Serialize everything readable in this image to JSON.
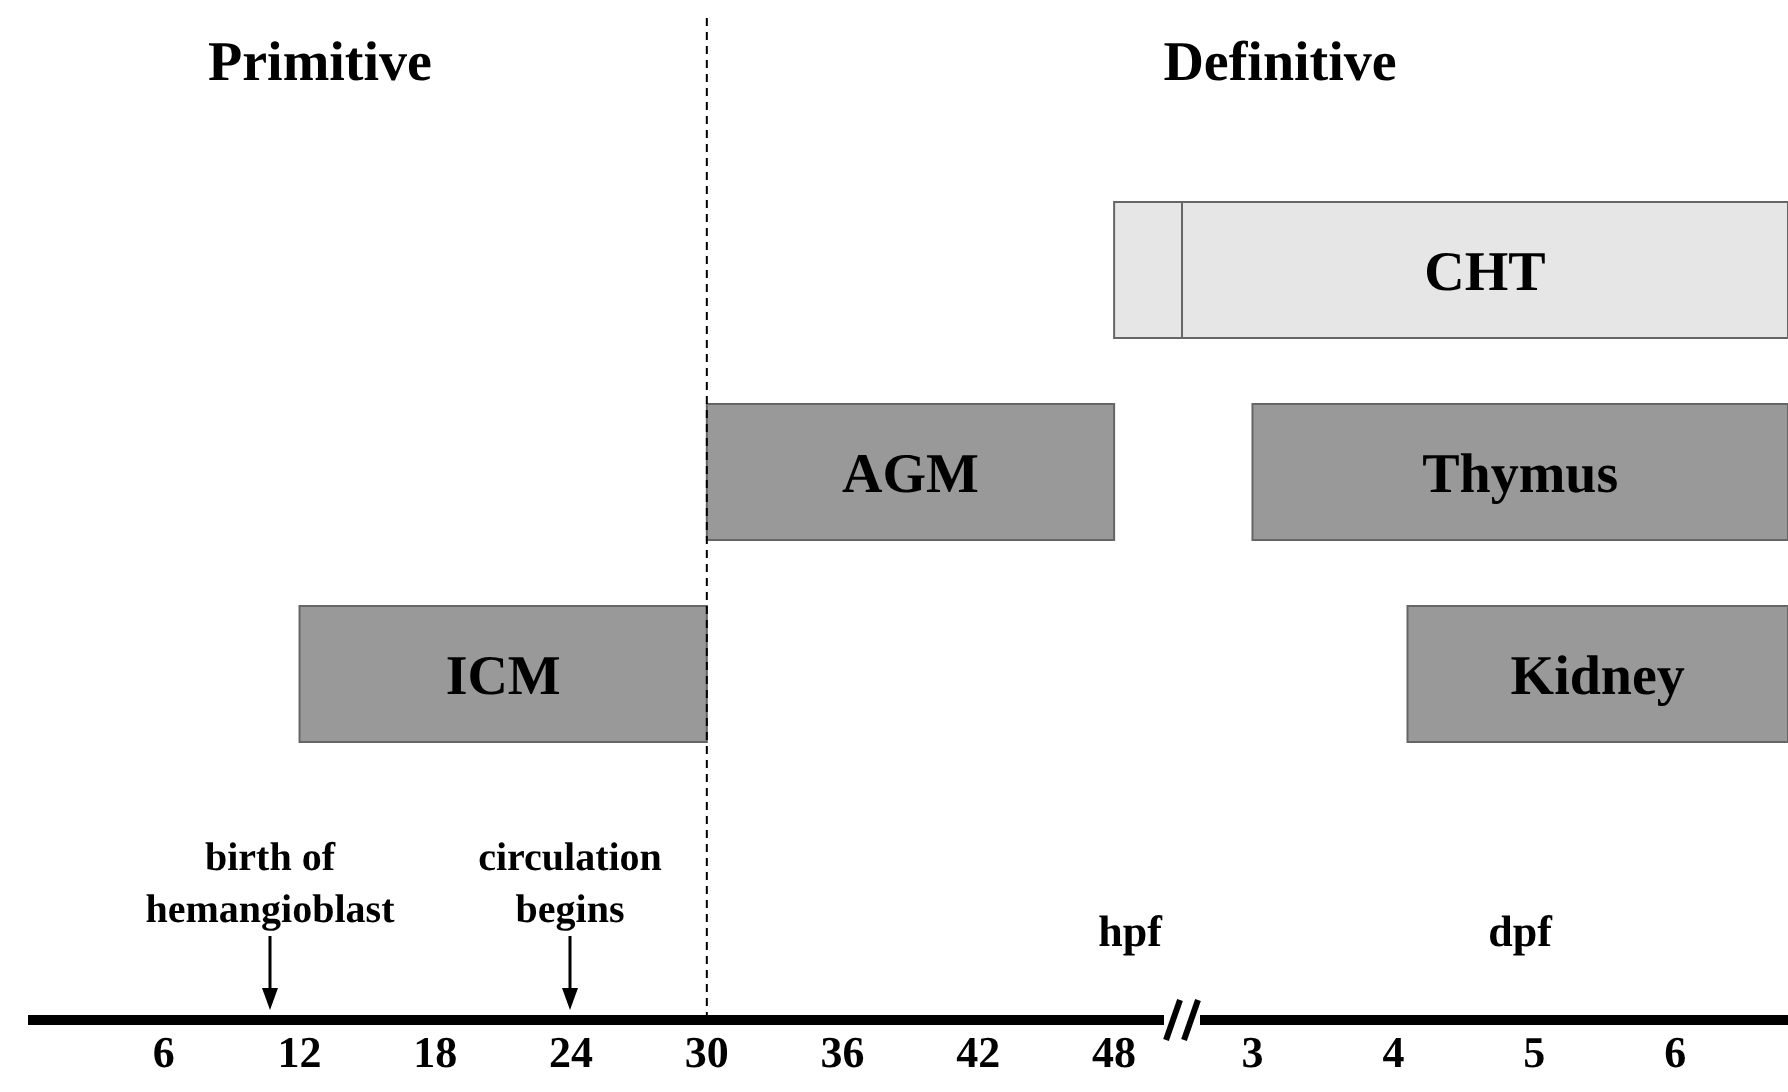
{
  "chart_data": [
    {
      "type": "bar",
      "orientation": "horizontal",
      "categories": [
        null,
        null,
        null
      ],
      "series": [
        {
          "values": [
            3,
            18,
            18
          ],
          "base": [
            48,
            30,
            12
          ],
          "colors": [
            "#e6e6e6",
            "#999999",
            "#999999"
          ],
          "value_labels": [
            null,
            "AGM",
            "ICM"
          ]
        }
      ],
      "xlim": [
        0,
        51
      ],
      "xticks": [
        6,
        12,
        18,
        24,
        30,
        36,
        42,
        48
      ],
      "ref_lines": [
        {
          "axis": "x",
          "value": 30,
          "line_style": "dashed",
          "color": "#000000"
        }
      ],
      "annotations": [
        "Primitive",
        "birth of\nhemangioblast",
        "circulation\nbegins",
        "hpf"
      ],
      "tick_labels": "x"
    },
    {
      "type": "bar",
      "orientation": "horizontal",
      "categories": [
        null,
        null,
        null
      ],
      "series": [
        {
          "values": [
            4.3,
            3.8,
            2.7
          ],
          "base": [
            2.5,
            3,
            4.1
          ],
          "colors": [
            "#e6e6e6",
            "#999999",
            "#999999"
          ],
          "value_labels": [
            "CHT",
            "Thymus",
            "Kidney"
          ]
        }
      ],
      "xlim": [
        2.5,
        6.8
      ],
      "xticks": [
        3,
        4,
        5,
        6
      ],
      "annotations": [
        "Definitive",
        "dpf"
      ],
      "tick_labels": "x"
    }
  ]
}
